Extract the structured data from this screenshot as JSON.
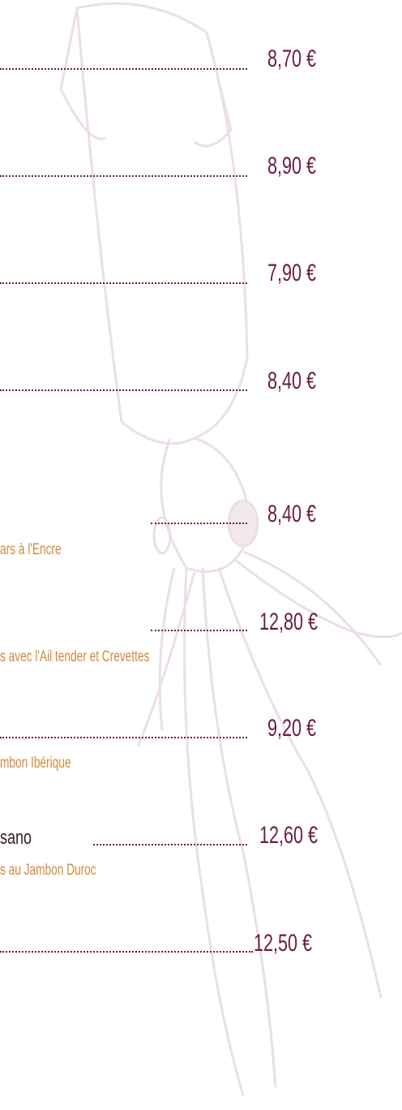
{
  "items": [
    {
      "price": "8,70 €"
    },
    {
      "price": "8,90 €"
    },
    {
      "price": "7,90 €"
    },
    {
      "price": "8,40 €"
    },
    {
      "price": "8,40 €",
      "desc": "ars à l'Encre"
    },
    {
      "price": "12,80 €",
      "desc": "s avec l'Ail tender et Crevettes"
    },
    {
      "price": "9,20 €",
      "desc": "mbon Ibérique"
    },
    {
      "name": "sano",
      "price": "12,60 €",
      "desc": "s au Jambon Duroc"
    },
    {
      "price": "12,50 €"
    }
  ]
}
